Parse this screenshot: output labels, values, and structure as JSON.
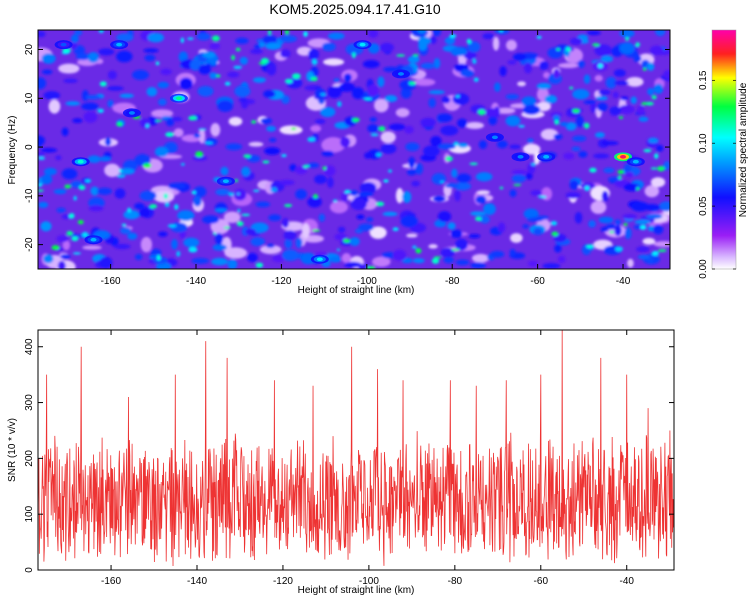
{
  "figure": {
    "title": "KOM5.2025.094.17.41.G10"
  },
  "chart_data": [
    {
      "type": "heatmap",
      "xlabel": "Height of straight line (km)",
      "ylabel": "Frequency (Hz)",
      "xlim": [
        -177,
        -29
      ],
      "ylim": [
        -25,
        24
      ],
      "xticks": [
        -160,
        -140,
        -120,
        -100,
        -80,
        -60,
        -40
      ],
      "yticks": [
        -20,
        -10,
        0,
        10,
        20
      ],
      "colorbar": {
        "label": "Normalized spectral amplitude",
        "range": [
          0,
          0.19
        ],
        "ticks": [
          "0.00",
          "0.05",
          "0.10",
          "0.15"
        ],
        "colormap": [
          "#ffffff",
          "#a020f0",
          "#0000ff",
          "#00ffff",
          "#00ff00",
          "#ffff00",
          "#ff0000",
          "#ff00ff"
        ]
      },
      "hotspots": [
        {
          "x": -40,
          "y": -2,
          "value": 0.18
        },
        {
          "x": -144,
          "y": 10,
          "value": 0.12
        },
        {
          "x": -167,
          "y": -3,
          "value": 0.11
        },
        {
          "x": -111,
          "y": -23,
          "value": 0.1
        },
        {
          "x": -101,
          "y": 21,
          "value": 0.1
        },
        {
          "x": -158,
          "y": 21,
          "value": 0.09
        },
        {
          "x": -133,
          "y": -7,
          "value": 0.09
        },
        {
          "x": -58,
          "y": -2,
          "value": 0.09
        },
        {
          "x": -64,
          "y": -2,
          "value": 0.08
        },
        {
          "x": -70,
          "y": 2,
          "value": 0.08
        },
        {
          "x": -37,
          "y": -3,
          "value": 0.09
        },
        {
          "x": -164,
          "y": -19,
          "value": 0.09
        },
        {
          "x": -171,
          "y": 21,
          "value": 0.07
        },
        {
          "x": -155,
          "y": 7,
          "value": 0.08
        },
        {
          "x": -92,
          "y": 15,
          "value": 0.08
        }
      ]
    },
    {
      "type": "line",
      "xlabel": "Height of straight line (km)",
      "ylabel": "SNR (10 * v/v)",
      "xlim": [
        -177,
        -29
      ],
      "ylim": [
        0,
        430
      ],
      "xticks": [
        -160,
        -140,
        -120,
        -100,
        -80,
        -60,
        -40
      ],
      "yticks": [
        0,
        100,
        200,
        300,
        400
      ],
      "color": "#ee3333",
      "summary": {
        "baseline": 125,
        "typical_low": 30,
        "typical_high": 250,
        "max": 430,
        "max_at_x": -55
      },
      "peaks": [
        {
          "x": -175,
          "y": 350
        },
        {
          "x": -167,
          "y": 400
        },
        {
          "x": -156,
          "y": 310
        },
        {
          "x": -145,
          "y": 350
        },
        {
          "x": -138,
          "y": 410
        },
        {
          "x": -133,
          "y": 380
        },
        {
          "x": -122,
          "y": 340
        },
        {
          "x": -113,
          "y": 330
        },
        {
          "x": -104,
          "y": 400
        },
        {
          "x": -98,
          "y": 360
        },
        {
          "x": -92,
          "y": 340
        },
        {
          "x": -81,
          "y": 340
        },
        {
          "x": -75,
          "y": 330
        },
        {
          "x": -68,
          "y": 340
        },
        {
          "x": -60,
          "y": 350
        },
        {
          "x": -55,
          "y": 430
        },
        {
          "x": -46,
          "y": 380
        },
        {
          "x": -40,
          "y": 350
        },
        {
          "x": -35,
          "y": 290
        },
        {
          "x": -30,
          "y": 250
        }
      ]
    }
  ]
}
